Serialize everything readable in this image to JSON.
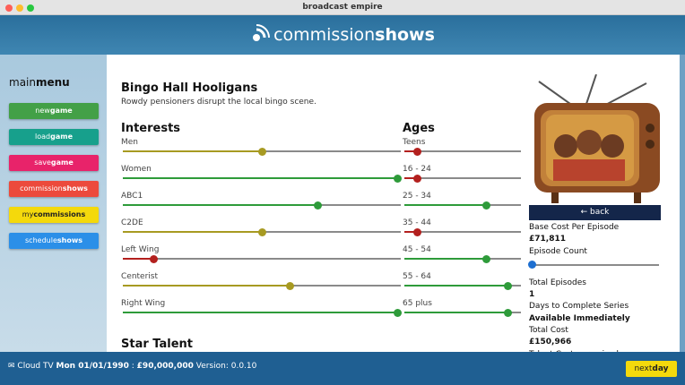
{
  "window_title": "broadcast empire",
  "logo": {
    "light": "commission",
    "bold": "shows"
  },
  "menu": {
    "title": {
      "light": "main",
      "bold": "menu"
    },
    "buttons": [
      {
        "light": "new",
        "bold": "game",
        "color": "#43a047"
      },
      {
        "light": "load",
        "bold": "game",
        "color": "#17a08c"
      },
      {
        "light": "save",
        "bold": "game",
        "color": "#e8236a"
      },
      {
        "light": "commission",
        "bold": "shows",
        "color": "#ec4a3c"
      },
      {
        "light": "my",
        "bold": "commissions",
        "color": "#f4d90c"
      },
      {
        "light": "schedule",
        "bold": "shows",
        "color": "#2b8fe8"
      }
    ]
  },
  "show": {
    "title": "Bingo Hall Hooligans",
    "description": "Rowdy pensioners disrupt the local bingo scene."
  },
  "interests": {
    "heading": "Interests",
    "sliders": [
      {
        "label": "Men",
        "value": 0.5,
        "color": "#a79a22"
      },
      {
        "label": "Women",
        "value": 0.99,
        "color": "#2e9b3a"
      },
      {
        "label": "ABC1",
        "value": 0.7,
        "color": "#2e9b3a"
      },
      {
        "label": "C2DE",
        "value": 0.5,
        "color": "#a79a22"
      },
      {
        "label": "Left Wing",
        "value": 0.11,
        "color": "#b3201e"
      },
      {
        "label": "Centerist",
        "value": 0.6,
        "color": "#a79a22"
      },
      {
        "label": "Right Wing",
        "value": 0.99,
        "color": "#2e9b3a"
      }
    ]
  },
  "ages": {
    "heading": "Ages",
    "sliders": [
      {
        "label": "Teens",
        "value": 0.11,
        "color": "#b3201e"
      },
      {
        "label": "16 - 24",
        "value": 0.11,
        "color": "#b3201e"
      },
      {
        "label": "25 - 34",
        "value": 0.7,
        "color": "#2e9b3a"
      },
      {
        "label": "35 - 44",
        "value": 0.11,
        "color": "#b3201e"
      },
      {
        "label": "45 - 54",
        "value": 0.7,
        "color": "#2e9b3a"
      },
      {
        "label": "55 - 64",
        "value": 0.89,
        "color": "#2e9b3a"
      },
      {
        "label": "65 plus",
        "value": 0.89,
        "color": "#2e9b3a"
      }
    ]
  },
  "star_talent": "Star Talent",
  "back": "back",
  "details": {
    "base_cost_label": "Base Cost Per Episode",
    "base_cost": "£71,811",
    "episode_count_label": "Episode Count",
    "episode_slider": {
      "value": 0.01,
      "color": "#1e6fd0"
    },
    "total_episodes_label": "Total Episodes",
    "total_episodes": "1",
    "days_label": "Days to Complete Series",
    "days": "Available Immediately",
    "total_cost_label": "Total Cost",
    "total_cost": "£150,966",
    "talent_cost_label": "Talent Cost per episode"
  },
  "status": {
    "company": "Cloud TV",
    "date": "Mon 01/01/1990",
    "separator": ":",
    "balance": "£90,000,000",
    "version": "Version: 0.0.10"
  },
  "next_day": {
    "light": "next",
    "bold": "day"
  }
}
